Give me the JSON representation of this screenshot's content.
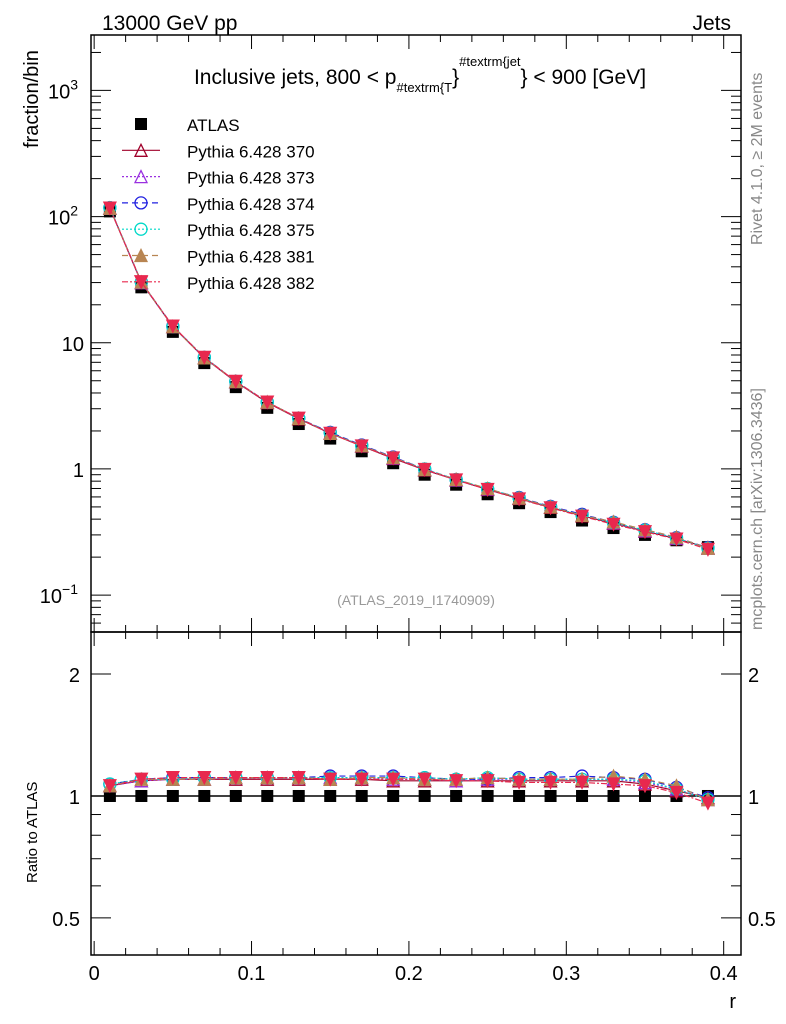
{
  "header": {
    "left": "13000 GeV pp",
    "right": "Jets"
  },
  "side_labels": {
    "rivet": "Rivet 4.1.0, ≥ 2M events",
    "mcplots": "mcplots.cern.ch [arXiv:1306.3436]"
  },
  "watermark": "(ATLAS_2019_I1740909)",
  "title_parts": {
    "main": "Inclusive jets, 800 < p",
    "sub": "#textrm{T",
    "mid": "}",
    "sup": "#textrm{jet",
    "end": "} < 900 [GeV]"
  },
  "chart_data": {
    "type": "line",
    "title": "Inclusive jets, 800 < pT(jet) < 900 [GeV]",
    "xlabel": "r",
    "ylabel": "fraction/bin",
    "ratio_ylabel": "Ratio to ATLAS",
    "xlim": [
      -0.002,
      0.411
    ],
    "ylim_log": [
      0.051,
      2750
    ],
    "ratio_ylim_log": [
      0.405,
      2.54
    ],
    "x_ticks": [
      "0",
      "0.1",
      "0.2",
      "0.3",
      "0.4"
    ],
    "x_tick_values": [
      0,
      0.1,
      0.2,
      0.3,
      0.4
    ],
    "y_ticks": [
      {
        "v": 1000,
        "base": "10",
        "exp": "3"
      },
      {
        "v": 100,
        "base": "10",
        "exp": "2"
      },
      {
        "v": 10,
        "base": "10",
        "exp": ""
      },
      {
        "v": 1,
        "base": "1",
        "exp": ""
      },
      {
        "v": 0.1,
        "base": "10",
        "exp": "−1"
      }
    ],
    "ratio_ticks": [
      {
        "v": 2,
        "label": "2"
      },
      {
        "v": 1,
        "label": "1"
      },
      {
        "v": 0.5,
        "label": "0.5"
      }
    ],
    "x": [
      0.01,
      0.03,
      0.05,
      0.07,
      0.09,
      0.11,
      0.13,
      0.15,
      0.17,
      0.19,
      0.21,
      0.23,
      0.25,
      0.27,
      0.29,
      0.31,
      0.33,
      0.35,
      0.37,
      0.39
    ],
    "reference": {
      "name": "ATLAS",
      "color": "#000000",
      "values": [
        110,
        27.5,
        12.2,
        6.9,
        4.45,
        3.05,
        2.27,
        1.74,
        1.38,
        1.11,
        0.9,
        0.75,
        0.63,
        0.535,
        0.455,
        0.39,
        0.34,
        0.3,
        0.272,
        0.24
      ]
    },
    "series": [
      {
        "name": "Pythia 6.428 370",
        "color": "#a0002a",
        "dash": "",
        "marker": "triangle-open",
        "ratio": [
          1.06,
          1.09,
          1.1,
          1.1,
          1.1,
          1.1,
          1.1,
          1.1,
          1.1,
          1.09,
          1.09,
          1.09,
          1.09,
          1.09,
          1.09,
          1.09,
          1.09,
          1.07,
          1.03,
          0.99
        ]
      },
      {
        "name": "Pythia 6.428 373",
        "color": "#9a30e0",
        "dash": "2,2",
        "marker": "triangle-open",
        "ratio": [
          1.06,
          1.09,
          1.1,
          1.1,
          1.11,
          1.11,
          1.11,
          1.11,
          1.11,
          1.1,
          1.1,
          1.09,
          1.1,
          1.1,
          1.1,
          1.1,
          1.1,
          1.08,
          1.04,
          0.98
        ]
      },
      {
        "name": "Pythia 6.428 374",
        "color": "#2020e0",
        "dash": "6,4",
        "marker": "circle-open",
        "ratio": [
          1.07,
          1.1,
          1.11,
          1.11,
          1.11,
          1.11,
          1.11,
          1.12,
          1.12,
          1.12,
          1.11,
          1.1,
          1.1,
          1.11,
          1.11,
          1.12,
          1.11,
          1.1,
          1.05,
          0.99
        ]
      },
      {
        "name": "Pythia 6.428 375",
        "color": "#00d8c8",
        "dash": "2,2",
        "marker": "circle-open",
        "ratio": [
          1.07,
          1.1,
          1.1,
          1.11,
          1.11,
          1.11,
          1.11,
          1.11,
          1.11,
          1.11,
          1.11,
          1.1,
          1.11,
          1.1,
          1.1,
          1.1,
          1.1,
          1.09,
          1.04,
          0.98
        ]
      },
      {
        "name": "Pythia 6.428 381",
        "color": "#b88552",
        "dash": "6,4",
        "marker": "triangle-filled",
        "ratio": [
          1.06,
          1.1,
          1.1,
          1.1,
          1.11,
          1.11,
          1.11,
          1.1,
          1.11,
          1.11,
          1.1,
          1.1,
          1.11,
          1.1,
          1.1,
          1.1,
          1.12,
          1.1,
          1.06,
          0.98
        ]
      },
      {
        "name": "Pythia 6.428 382",
        "color": "#e8284e",
        "dash": "6,2,2,2",
        "marker": "triangle-down-filled",
        "ratio": [
          1.06,
          1.1,
          1.11,
          1.11,
          1.11,
          1.11,
          1.11,
          1.1,
          1.1,
          1.1,
          1.1,
          1.09,
          1.09,
          1.08,
          1.08,
          1.08,
          1.07,
          1.06,
          1.02,
          0.96
        ]
      }
    ]
  }
}
